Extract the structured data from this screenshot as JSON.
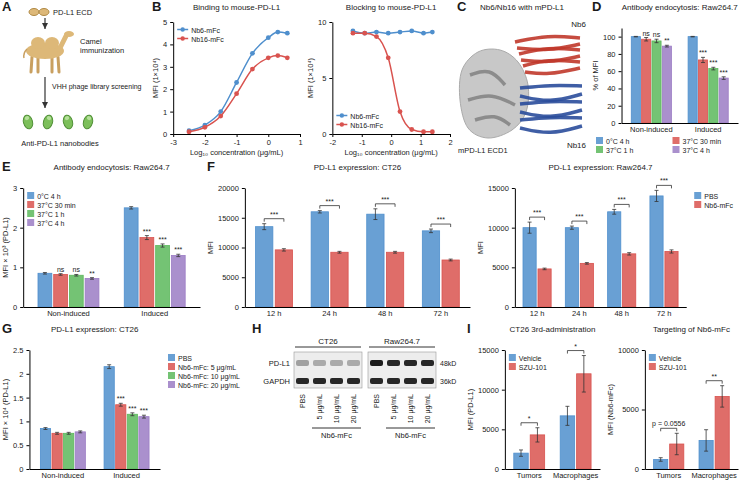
{
  "chart_data": [
    {
      "panel": "B",
      "type": "line",
      "title": "Binding to mouse-PD-L1",
      "x_label": "Log₁₀ concentration (μg/mL)",
      "y_label": "MFI (1×10⁴)",
      "x": [
        -2.5,
        -2,
        -1.5,
        -1,
        -0.5,
        0,
        0.3,
        0.6
      ],
      "series": [
        {
          "name": "Nb6-mFc",
          "color": "#4f8fcd",
          "marker": "circle",
          "values": [
            0.15,
            0.4,
            1.0,
            2.3,
            3.6,
            4.3,
            4.55,
            4.5
          ]
        },
        {
          "name": "Nb16-mFc",
          "color": "#d9534f",
          "marker": "circle",
          "values": [
            0.1,
            0.3,
            0.8,
            1.8,
            2.9,
            3.4,
            3.5,
            3.4
          ]
        }
      ],
      "xlim": [
        -3,
        1
      ],
      "xticks": [
        -3,
        -2,
        -1,
        0,
        1
      ],
      "ylim": [
        0,
        5
      ],
      "yticks": [
        0,
        1,
        2,
        3,
        4,
        5
      ],
      "legend": "top-left"
    },
    {
      "type": "line",
      "title": "Blocking to mouse-PD-L1",
      "x_label": "Log₁₀ concentration (μg/mL)",
      "y_label": "MFI (1×10⁴)",
      "x": [
        -1.3,
        -0.9,
        -0.5,
        -0.1,
        0.3,
        0.7,
        1.1,
        1.4
      ],
      "series": [
        {
          "name": "Nb6-mFc",
          "color": "#4f8fcd",
          "marker": "circle",
          "values": [
            9.2,
            9.0,
            9.1,
            9.0,
            9.1,
            9.2,
            9.0,
            9.1
          ]
        },
        {
          "name": "Nb16-mFc",
          "color": "#d9534f",
          "marker": "circle",
          "values": [
            9.0,
            9.0,
            8.7,
            6.8,
            2.0,
            0.4,
            0.2,
            0.2
          ]
        }
      ],
      "xlim": [
        -2,
        2
      ],
      "xticks": [
        -2,
        -1,
        0,
        1,
        2
      ],
      "ylim": [
        0,
        10
      ],
      "yticks": [
        0,
        5,
        10
      ],
      "legend": "bottom-left"
    },
    {
      "panel": "D",
      "type": "bar",
      "title": "Antibody endocytosis: Raw264.7",
      "y_label": "% of MFI",
      "categories": [
        "Non-induced",
        "Induced"
      ],
      "series": [
        {
          "name": "0°C 4 h",
          "color": "#4f8fcd",
          "values": [
            100,
            100
          ],
          "errors": [
            0.3,
            0.3
          ]
        },
        {
          "name": "37°C 30 min",
          "color": "#d9534f",
          "values": [
            97,
            73
          ],
          "errors": [
            2,
            3
          ],
          "significance": [
            "ns",
            "***"
          ]
        },
        {
          "name": "37°C 1 h",
          "color": "#5cb85c",
          "values": [
            95,
            63
          ],
          "errors": [
            2,
            1.5
          ],
          "significance": [
            "ns",
            "***"
          ]
        },
        {
          "name": "37°C 4 h",
          "color": "#9b7cc4",
          "values": [
            89,
            52
          ],
          "errors": [
            1,
            1.5
          ],
          "significance": [
            "**",
            "***"
          ]
        }
      ],
      "ylim": [
        0,
        110
      ],
      "yticks": [
        0,
        20,
        40,
        60,
        80,
        100
      ],
      "legend": "bottom"
    },
    {
      "panel": "E",
      "type": "bar",
      "title": "Antibody endocytosis: Raw264.7",
      "y_label": "MFI × 10³ (PD-L1)",
      "categories": [
        "Non-induced",
        "Induced"
      ],
      "series": [
        {
          "name": "0°C 4 h",
          "color": "#4f8fcd",
          "values": [
            0.85,
            2.5
          ],
          "errors": [
            0.02,
            0.03
          ]
        },
        {
          "name": "37°C 30 min",
          "color": "#d9534f",
          "values": [
            0.82,
            1.75
          ],
          "errors": [
            0.02,
            0.05
          ],
          "significance": [
            "ns",
            "***"
          ]
        },
        {
          "name": "37°C 1 h",
          "color": "#5cb85c",
          "values": [
            0.8,
            1.55
          ],
          "errors": [
            0.02,
            0.04
          ],
          "significance": [
            "ns",
            "***"
          ]
        },
        {
          "name": "37°C 4 h",
          "color": "#9b7cc4",
          "values": [
            0.72,
            1.3
          ],
          "errors": [
            0.02,
            0.03
          ],
          "significance": [
            "**",
            "***"
          ]
        }
      ],
      "ylim": [
        0,
        3
      ],
      "yticks": [
        0,
        1,
        2,
        3
      ],
      "legend": "top-left"
    },
    {
      "panel": "F",
      "type": "bar",
      "title": "PD-L1 expression: CT26",
      "y_label": "MFI",
      "categories": [
        "12 h",
        "24 h",
        "48 h",
        "72 h"
      ],
      "series": [
        {
          "color": "#4f8fcd",
          "values": [
            13500,
            16000,
            15600,
            12800
          ],
          "errors": [
            500,
            200,
            900,
            300
          ]
        },
        {
          "color": "#d9534f",
          "values": [
            9600,
            9200,
            9200,
            7900
          ],
          "errors": [
            200,
            150,
            150,
            150
          ],
          "significance": [
            "***",
            "***",
            "***",
            "***"
          ]
        }
      ],
      "ylim": [
        0,
        20000
      ],
      "yticks": [
        0,
        5000,
        10000,
        15000,
        20000
      ]
    },
    {
      "type": "bar",
      "title": "PD-L1 expression: Raw264.7",
      "y_label": "MFI",
      "categories": [
        "12 h",
        "24 h",
        "48 h",
        "72 h"
      ],
      "series": [
        {
          "name": "PBS",
          "color": "#4f8fcd",
          "values": [
            10000,
            10000,
            12000,
            14000
          ],
          "errors": [
            700,
            200,
            300,
            700
          ]
        },
        {
          "name": "Nb6-mFc",
          "color": "#d9534f",
          "values": [
            4800,
            5500,
            6700,
            7000
          ],
          "errors": [
            100,
            100,
            150,
            200
          ],
          "significance": [
            "***",
            "***",
            "***",
            "***"
          ]
        }
      ],
      "ylim": [
        0,
        15000
      ],
      "yticks": [
        0,
        5000,
        10000,
        15000
      ],
      "legend": "right"
    },
    {
      "panel": "G",
      "type": "bar",
      "title": "PD-L1 expression: CT26",
      "y_label": "MFI × 10⁴ (PD-L1)",
      "categories": [
        "Non-induced",
        "Induced"
      ],
      "series": [
        {
          "name": "PBS",
          "color": "#4f8fcd",
          "values": [
            0.85,
            2.15
          ],
          "errors": [
            0.02,
            0.04
          ]
        },
        {
          "name": "Nb6-mFc: 5 μg/mL",
          "color": "#d9534f",
          "values": [
            0.75,
            1.35
          ],
          "errors": [
            0.02,
            0.03
          ],
          "significance": [
            null,
            "***"
          ]
        },
        {
          "name": "Nb6-mFc: 10 μg/mL",
          "color": "#5cb85c",
          "values": [
            0.75,
            1.15
          ],
          "errors": [
            0.02,
            0.03
          ],
          "significance": [
            null,
            "***"
          ]
        },
        {
          "name": "Nb6-mFc: 20 μg/mL",
          "color": "#9b7cc4",
          "values": [
            0.78,
            1.1
          ],
          "errors": [
            0.02,
            0.03
          ],
          "significance": [
            null,
            "***"
          ]
        }
      ],
      "ylim": [
        0,
        2.5
      ],
      "yticks": [
        0,
        0.5,
        1,
        1.5,
        2,
        2.5
      ],
      "legend": "right"
    },
    {
      "panel": "I",
      "type": "bar",
      "title": "CT26 3rd-administration",
      "y_label": "MFI (PD-L1)",
      "categories": [
        "Tumors",
        "Macrophages"
      ],
      "series": [
        {
          "name": "Vehicle",
          "color": "#4f8fcd",
          "values": [
            2000,
            6700
          ],
          "errors": [
            400,
            1200
          ]
        },
        {
          "name": "SZU-101",
          "color": "#d9534f",
          "values": [
            4300,
            12000
          ],
          "errors": [
            900,
            2300
          ],
          "significance": [
            "*",
            "*"
          ]
        }
      ],
      "ylim": [
        0,
        15000
      ],
      "yticks": [
        0,
        5000,
        10000,
        15000
      ],
      "legend": "top-left"
    },
    {
      "type": "bar",
      "title": "Targeting of Nb6-mFc",
      "y_label": "MFI (Nb6-mFc)",
      "categories": [
        "Tumors",
        "Macrophages"
      ],
      "series": [
        {
          "name": "Vehicle",
          "color": "#4f8fcd",
          "values": [
            800,
            2400
          ],
          "errors": [
            150,
            900
          ]
        },
        {
          "name": "SZU-101",
          "color": "#d9534f",
          "values": [
            2100,
            6100
          ],
          "errors": [
            900,
            900
          ],
          "significance": [
            "p = 0.0556",
            "**"
          ]
        }
      ],
      "ylim": [
        0,
        10000
      ],
      "yticks": [
        0,
        5000,
        10000
      ],
      "legend": "top-left"
    }
  ],
  "diagram_a": {
    "panel": "A",
    "texts": [
      "PD-L1 ECD",
      "Camel immunization",
      "VHH phage library screening",
      "Anti-PD-L1 nanobodies"
    ]
  },
  "structure_c": {
    "panel": "C",
    "title": "Nb6/Nb16 with mPD-L1",
    "labels": [
      "Nb6",
      "Nb16",
      "mPD-L1 ECD1"
    ]
  },
  "blot_h": {
    "panel": "H",
    "groups": [
      "CT26",
      "Raw264.7"
    ],
    "lanes": [
      "PBS",
      "5 μg/mL",
      "10 μg/mL",
      "20 μg/mL",
      "PBS",
      "5 μg/mL",
      "10 μg/mL",
      "20 μg/mL"
    ],
    "treatment": "Nb6-mFc",
    "rows": [
      {
        "name": "PD-L1",
        "size": "48kD",
        "bands": [
          0.35,
          0.3,
          0.3,
          0.3,
          0.95,
          0.9,
          0.9,
          0.9
        ]
      },
      {
        "name": "GAPDH",
        "size": "36kD",
        "bands": [
          0.9,
          0.9,
          0.9,
          0.9,
          0.9,
          0.9,
          0.9,
          0.9
        ]
      }
    ]
  }
}
